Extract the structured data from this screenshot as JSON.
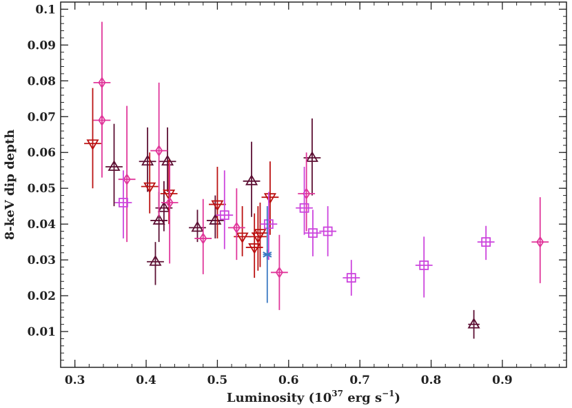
{
  "chart_data": {
    "type": "scatter",
    "xlabel": "Luminosity (10",
    "xlabel_sup": "37",
    "xlabel_mid": " erg s",
    "xlabel_sup2": "−1",
    "xlabel_end": ")",
    "ylabel": "8-keV dip depth",
    "xlim": [
      0.28,
      0.99
    ],
    "ylim": [
      0.0,
      0.102
    ],
    "x_ticks": [
      "0.3",
      "0.4",
      "0.5",
      "0.6",
      "0.7",
      "0.8",
      "0.9"
    ],
    "y_ticks": [
      "0.01",
      "0.02",
      "0.03",
      "0.04",
      "0.05",
      "0.06",
      "0.07",
      "0.08",
      "0.09",
      "0.1"
    ],
    "grid": false,
    "colors": {
      "triangle_up": "#5c0f33",
      "triangle_down": "#bb1111",
      "diamond": "#e0369a",
      "square": "#cc44dd",
      "asterisk": "#3a78c2"
    },
    "series": [
      {
        "marker": "triangle-up",
        "points": [
          {
            "x": 0.355,
            "y": 0.056,
            "ylo": 0.045,
            "yhi": 0.068,
            "xerr": 0.012
          },
          {
            "x": 0.402,
            "y": 0.0575,
            "ylo": 0.049,
            "yhi": 0.067,
            "xerr": 0.012
          },
          {
            "x": 0.418,
            "y": 0.041,
            "ylo": 0.035,
            "yhi": 0.049,
            "xerr": 0.012
          },
          {
            "x": 0.425,
            "y": 0.0445,
            "ylo": 0.038,
            "yhi": 0.052,
            "xerr": 0.012
          },
          {
            "x": 0.43,
            "y": 0.0575,
            "ylo": 0.049,
            "yhi": 0.067,
            "xerr": 0.012
          },
          {
            "x": 0.413,
            "y": 0.0295,
            "ylo": 0.023,
            "yhi": 0.035,
            "xerr": 0.012
          },
          {
            "x": 0.472,
            "y": 0.039,
            "ylo": 0.035,
            "yhi": 0.044,
            "xerr": 0.012
          },
          {
            "x": 0.497,
            "y": 0.041,
            "ylo": 0.036,
            "yhi": 0.048,
            "xerr": 0.012
          },
          {
            "x": 0.548,
            "y": 0.052,
            "ylo": 0.042,
            "yhi": 0.063,
            "xerr": 0.012
          },
          {
            "x": 0.633,
            "y": 0.0585,
            "ylo": 0.048,
            "yhi": 0.0695,
            "xerr": 0.012
          },
          {
            "x": 0.86,
            "y": 0.012,
            "ylo": 0.008,
            "yhi": 0.016,
            "xerr": 0.008
          }
        ]
      },
      {
        "marker": "triangle-down",
        "points": [
          {
            "x": 0.325,
            "y": 0.0625,
            "ylo": 0.05,
            "yhi": 0.078,
            "xerr": 0.012
          },
          {
            "x": 0.405,
            "y": 0.0505,
            "ylo": 0.043,
            "yhi": 0.06,
            "xerr": 0.012
          },
          {
            "x": 0.432,
            "y": 0.0485,
            "ylo": 0.04,
            "yhi": 0.058,
            "xerr": 0.012
          },
          {
            "x": 0.5,
            "y": 0.0455,
            "ylo": 0.036,
            "yhi": 0.056,
            "xerr": 0.012
          },
          {
            "x": 0.535,
            "y": 0.0365,
            "ylo": 0.031,
            "yhi": 0.045,
            "xerr": 0.012
          },
          {
            "x": 0.552,
            "y": 0.0335,
            "ylo": 0.025,
            "yhi": 0.043,
            "xerr": 0.012
          },
          {
            "x": 0.557,
            "y": 0.0365,
            "ylo": 0.027,
            "yhi": 0.045,
            "xerr": 0.012
          },
          {
            "x": 0.56,
            "y": 0.0375,
            "ylo": 0.028,
            "yhi": 0.046,
            "xerr": 0.012
          },
          {
            "x": 0.574,
            "y": 0.0475,
            "ylo": 0.037,
            "yhi": 0.0575,
            "xerr": 0.012
          }
        ]
      },
      {
        "marker": "diamond",
        "points": [
          {
            "x": 0.338,
            "y": 0.0795,
            "ylo": 0.063,
            "yhi": 0.0965,
            "xerr": 0.012
          },
          {
            "x": 0.338,
            "y": 0.069,
            "ylo": 0.053,
            "yhi": 0.08,
            "xerr": 0.012
          },
          {
            "x": 0.373,
            "y": 0.0525,
            "ylo": 0.035,
            "yhi": 0.073,
            "xerr": 0.012
          },
          {
            "x": 0.418,
            "y": 0.0605,
            "ylo": 0.042,
            "yhi": 0.0795,
            "xerr": 0.012
          },
          {
            "x": 0.433,
            "y": 0.046,
            "ylo": 0.029,
            "yhi": 0.057,
            "xerr": 0.012
          },
          {
            "x": 0.48,
            "y": 0.036,
            "ylo": 0.026,
            "yhi": 0.047,
            "xerr": 0.012
          },
          {
            "x": 0.527,
            "y": 0.039,
            "ylo": 0.03,
            "yhi": 0.05,
            "xerr": 0.012
          },
          {
            "x": 0.587,
            "y": 0.0265,
            "ylo": 0.016,
            "yhi": 0.037,
            "xerr": 0.012
          },
          {
            "x": 0.625,
            "y": 0.0485,
            "ylo": 0.038,
            "yhi": 0.06,
            "xerr": 0.012
          },
          {
            "x": 0.953,
            "y": 0.035,
            "ylo": 0.0235,
            "yhi": 0.0475,
            "xerr": 0.012
          }
        ]
      },
      {
        "marker": "square",
        "points": [
          {
            "x": 0.368,
            "y": 0.046,
            "ylo": 0.036,
            "yhi": 0.055,
            "xerr": 0.012
          },
          {
            "x": 0.51,
            "y": 0.0425,
            "ylo": 0.033,
            "yhi": 0.055,
            "xerr": 0.012
          },
          {
            "x": 0.572,
            "y": 0.04,
            "ylo": 0.03,
            "yhi": 0.049,
            "xerr": 0.012
          },
          {
            "x": 0.622,
            "y": 0.0445,
            "ylo": 0.037,
            "yhi": 0.056,
            "xerr": 0.012
          },
          {
            "x": 0.634,
            "y": 0.0375,
            "ylo": 0.031,
            "yhi": 0.044,
            "xerr": 0.012
          },
          {
            "x": 0.655,
            "y": 0.038,
            "ylo": 0.031,
            "yhi": 0.045,
            "xerr": 0.012
          },
          {
            "x": 0.688,
            "y": 0.025,
            "ylo": 0.02,
            "yhi": 0.03,
            "xerr": 0.012
          },
          {
            "x": 0.79,
            "y": 0.0285,
            "ylo": 0.0195,
            "yhi": 0.0365,
            "xerr": 0.012
          },
          {
            "x": 0.877,
            "y": 0.035,
            "ylo": 0.03,
            "yhi": 0.0395,
            "xerr": 0.012
          }
        ]
      },
      {
        "marker": "asterisk",
        "points": [
          {
            "x": 0.57,
            "y": 0.0315,
            "ylo": 0.018,
            "yhi": 0.045,
            "xerr": 0.006
          }
        ]
      }
    ]
  }
}
